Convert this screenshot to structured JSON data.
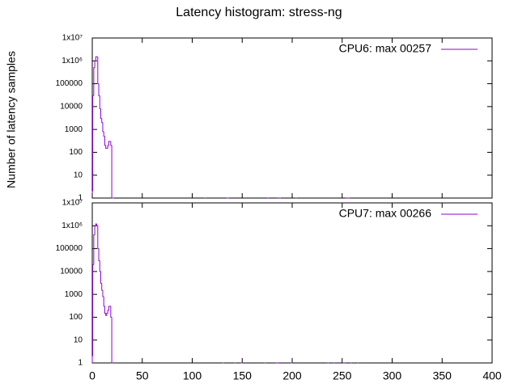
{
  "title": "Latency histogram:  stress-ng",
  "y_label": "Number of latency samples",
  "chart_data": [
    {
      "type": "step",
      "log_y": true,
      "legend": "top-right",
      "xlim": [
        0,
        400
      ],
      "ylim": [
        1,
        10000000
      ],
      "yticks": [
        1,
        10,
        100,
        1000,
        10000,
        100000,
        {
          "value": 1000000,
          "label": "1x10⁶"
        },
        {
          "value": 10000000,
          "label": "1x10⁷"
        }
      ],
      "x": [
        0,
        1,
        2,
        3,
        4,
        5,
        6,
        7,
        8,
        9,
        10,
        11,
        12,
        13,
        14,
        15,
        16,
        17,
        18,
        19,
        20,
        21,
        null,
        113,
        null,
        135,
        136,
        null,
        176,
        null,
        186,
        null,
        188,
        null,
        204,
        null,
        254,
        null,
        256,
        257
      ],
      "series": [
        {
          "name": "CPU6: max 00257",
          "color": "#9400d3",
          "values": [
            2,
            30000,
            500000,
            1000000,
            1500000,
            1500000,
            100000,
            30000,
            8000,
            3000,
            2000,
            800,
            500,
            200,
            150,
            150,
            200,
            300,
            300,
            200,
            1,
            1,
            null,
            1,
            null,
            1,
            1,
            null,
            1,
            null,
            1,
            null,
            1,
            null,
            1,
            null,
            1,
            null,
            1,
            1
          ]
        }
      ]
    },
    {
      "type": "step",
      "log_y": true,
      "legend": "top-right",
      "xlim": [
        0,
        400
      ],
      "ylim": [
        1,
        10000000
      ],
      "xticks": [
        0,
        50,
        100,
        150,
        200,
        250,
        300,
        350,
        400
      ],
      "yticks": [
        1,
        10,
        100,
        1000,
        10000,
        100000,
        {
          "value": 1000000,
          "label": "1x10⁶"
        },
        {
          "value": 10000000,
          "label": "1x10⁷"
        }
      ],
      "x": [
        0,
        1,
        2,
        3,
        4,
        5,
        6,
        7,
        8,
        9,
        10,
        11,
        12,
        13,
        14,
        15,
        16,
        17,
        18,
        19,
        20,
        null,
        131,
        null,
        143,
        null,
        149,
        150,
        null,
        173,
        null,
        184,
        null,
        186,
        null,
        199,
        200,
        null,
        236,
        null,
        242,
        null,
        251,
        null,
        253,
        null,
        259,
        null,
        266
      ],
      "series": [
        {
          "name": "CPU7: max 00266",
          "color": "#9400d3",
          "values": [
            2,
            20000,
            400000,
            1000000,
            1200000,
            1000000,
            100000,
            30000,
            10000,
            3000,
            1500,
            800,
            300,
            150,
            120,
            150,
            200,
            300,
            300,
            100,
            1,
            null,
            1,
            null,
            1,
            null,
            1,
            1,
            null,
            1,
            null,
            1,
            null,
            1,
            null,
            1,
            1,
            null,
            1,
            null,
            1,
            null,
            1,
            null,
            1,
            null,
            1,
            null,
            1
          ]
        }
      ]
    }
  ]
}
